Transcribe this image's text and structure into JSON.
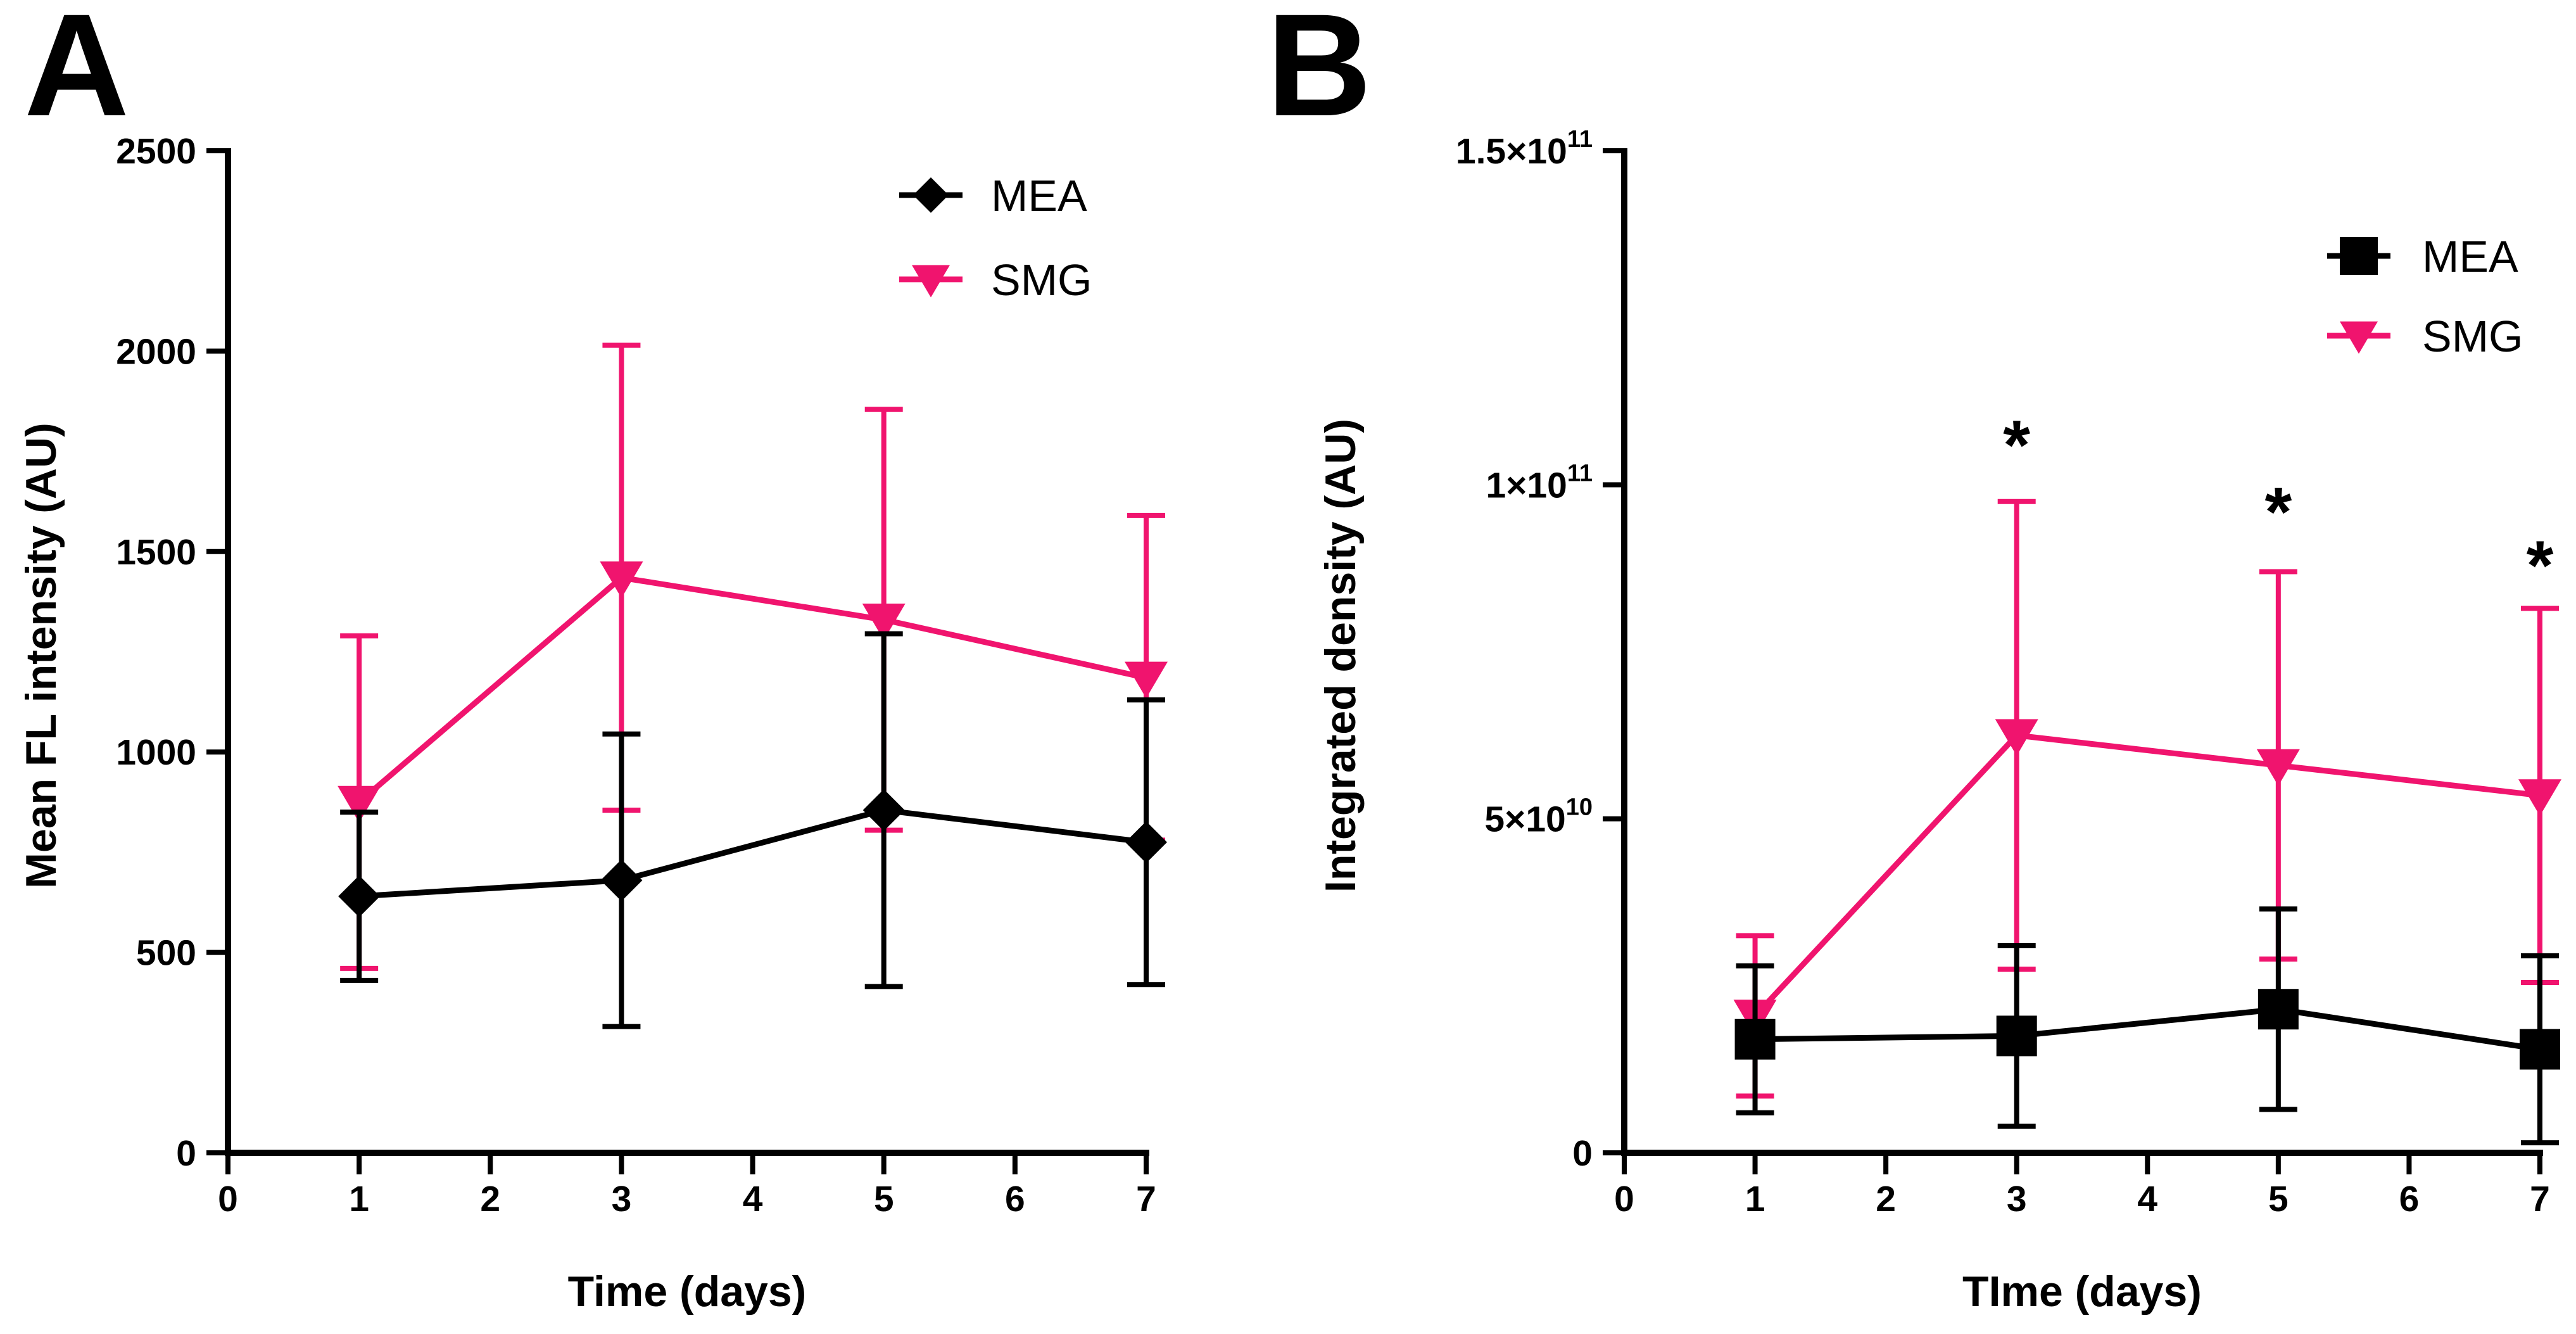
{
  "colors": {
    "MEA": "#000000",
    "SMG": "#f0146e"
  },
  "chart_data": [
    {
      "panel": "A",
      "type": "line",
      "xlabel": "Time (days)",
      "ylabel": "Mean FL intensity (AU)",
      "xlim": [
        0,
        7
      ],
      "ylim": [
        0,
        2500
      ],
      "xticks": [
        0,
        1,
        2,
        3,
        4,
        5,
        6,
        7
      ],
      "xtick_labels": [
        "0",
        "1",
        "2",
        "3",
        "4",
        "5",
        "6",
        "7"
      ],
      "yticks": [
        0,
        500,
        1000,
        1500,
        2000,
        2500
      ],
      "ytick_labels": [
        "0",
        "500",
        "1000",
        "1500",
        "2000",
        "2500"
      ],
      "legend_position": "top-right",
      "series": [
        {
          "name": "MEA",
          "marker": "diamond",
          "x": [
            1,
            3,
            5,
            7
          ],
          "y": [
            640,
            680,
            855,
            775
          ],
          "err": [
            210,
            365,
            440,
            355
          ]
        },
        {
          "name": "SMG",
          "marker": "triangle-down",
          "x": [
            1,
            3,
            5,
            7
          ],
          "y": [
            875,
            1435,
            1330,
            1185
          ],
          "err": [
            415,
            580,
            525,
            405
          ]
        }
      ],
      "annotations": []
    },
    {
      "panel": "B",
      "type": "line",
      "xlabel": "TIme  (days)",
      "ylabel": "Integrated density (AU)",
      "xlim": [
        0,
        7
      ],
      "ylim": [
        0,
        150000000000
      ],
      "xticks": [
        0,
        1,
        2,
        3,
        4,
        5,
        6,
        7
      ],
      "xtick_labels": [
        "0",
        "1",
        "2",
        "3",
        "4",
        "5",
        "6",
        "7"
      ],
      "yticks": [
        0,
        50000000000,
        100000000000,
        150000000000
      ],
      "ytick_labels": [
        {
          "base": "0",
          "exp": ""
        },
        {
          "base": "5×10",
          "exp": "10"
        },
        {
          "base": "1×10",
          "exp": "11"
        },
        {
          "base": "1.5×10",
          "exp": "11"
        }
      ],
      "legend_position": "top-right",
      "series": [
        {
          "name": "MEA",
          "marker": "square",
          "x": [
            1,
            3,
            5,
            7
          ],
          "y": [
            17000000000,
            17500000000,
            21500000000,
            15500000000
          ],
          "err": [
            11000000000,
            13500000000,
            15000000000,
            14000000000
          ]
        },
        {
          "name": "SMG",
          "marker": "triangle-down",
          "x": [
            1,
            3,
            5,
            7
          ],
          "y": [
            20500000000,
            62500000000,
            58000000000,
            53500000000
          ],
          "err": [
            12000000000,
            35000000000,
            29000000000,
            28000000000
          ]
        }
      ],
      "annotations": [
        {
          "text": "*",
          "x": 3,
          "y": 109000000000
        },
        {
          "text": "*",
          "x": 5,
          "y": 99000000000
        },
        {
          "text": "*",
          "x": 7,
          "y": 91000000000
        }
      ]
    }
  ]
}
